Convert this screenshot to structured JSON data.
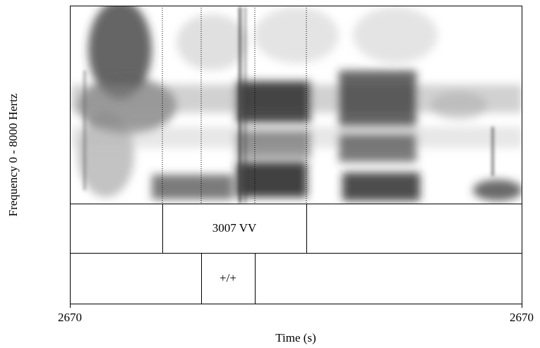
{
  "y_label": "Frequency 0 - 8000 Hertz",
  "x_label": "Time (s)",
  "x_start": "2670",
  "x_end": "2670",
  "tiers": [
    {
      "intervals": [
        {
          "label": "3007 VV"
        }
      ]
    },
    {
      "intervals": [
        {
          "label": "+/+"
        }
      ]
    }
  ]
}
